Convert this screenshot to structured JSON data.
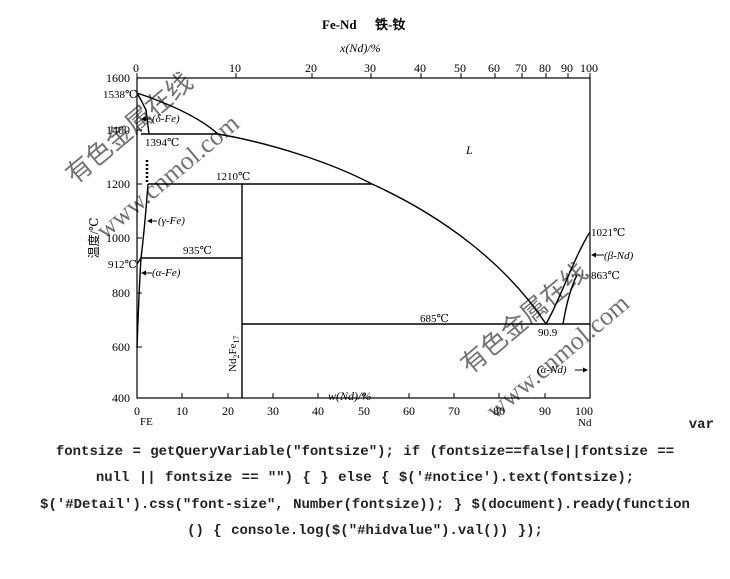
{
  "title": {
    "system": "Fe-Nd",
    "cn": "铁-钕"
  },
  "axes": {
    "top_label": "x(Nd)/%",
    "bottom_label": "w(Nd)/%",
    "y_label": "温度/℃",
    "top_ticks": [
      "0",
      "10",
      "20",
      "30",
      "40",
      "50",
      "60",
      "70",
      "80",
      "90",
      "100"
    ],
    "bottom_ticks": [
      "0",
      "10",
      "20",
      "30",
      "40",
      "50",
      "60",
      "70",
      "80",
      "90",
      "100"
    ],
    "y_ticks": [
      "400",
      "600",
      "800",
      "1000",
      "1200",
      "1400",
      "1600"
    ],
    "left_end": "FE",
    "right_end": "Nd"
  },
  "labels": {
    "t1538": "1538℃",
    "delta_fe": "(δ-Fe)",
    "t1394": "1394℃",
    "t1210": "1210℃",
    "gamma_fe": "(γ-Fe)",
    "t935": "935℃",
    "t912": "912℃",
    "alpha_fe": "(α-Fe)",
    "liquid": "L",
    "t1021": "1021℃",
    "beta_nd": "(β-Nd)",
    "t863": "863℃",
    "t685": "685℃",
    "eutectic": "90.9",
    "compound_main": "Nd",
    "compound_sub1": "2",
    "compound_mid": "Fe",
    "compound_sub2": "17",
    "alpha_nd": "(α-Nd)"
  },
  "watermark": {
    "text1": "有色金属在线",
    "text2": "www.cnmol.com"
  },
  "code": {
    "line1": "var",
    "line2": "fontsize = getQueryVariable(\"fontsize\"); if (fontsize==false||fontsize ==",
    "line3": "null || fontsize == \"\") { } else { $('#notice').text(fontsize);",
    "line4": "$('#Detail').css(\"font-size\", Number(fontsize)); } $(document).ready(function",
    "line5": "() { console.log($(\"#hidvalue\").val()) });"
  }
}
